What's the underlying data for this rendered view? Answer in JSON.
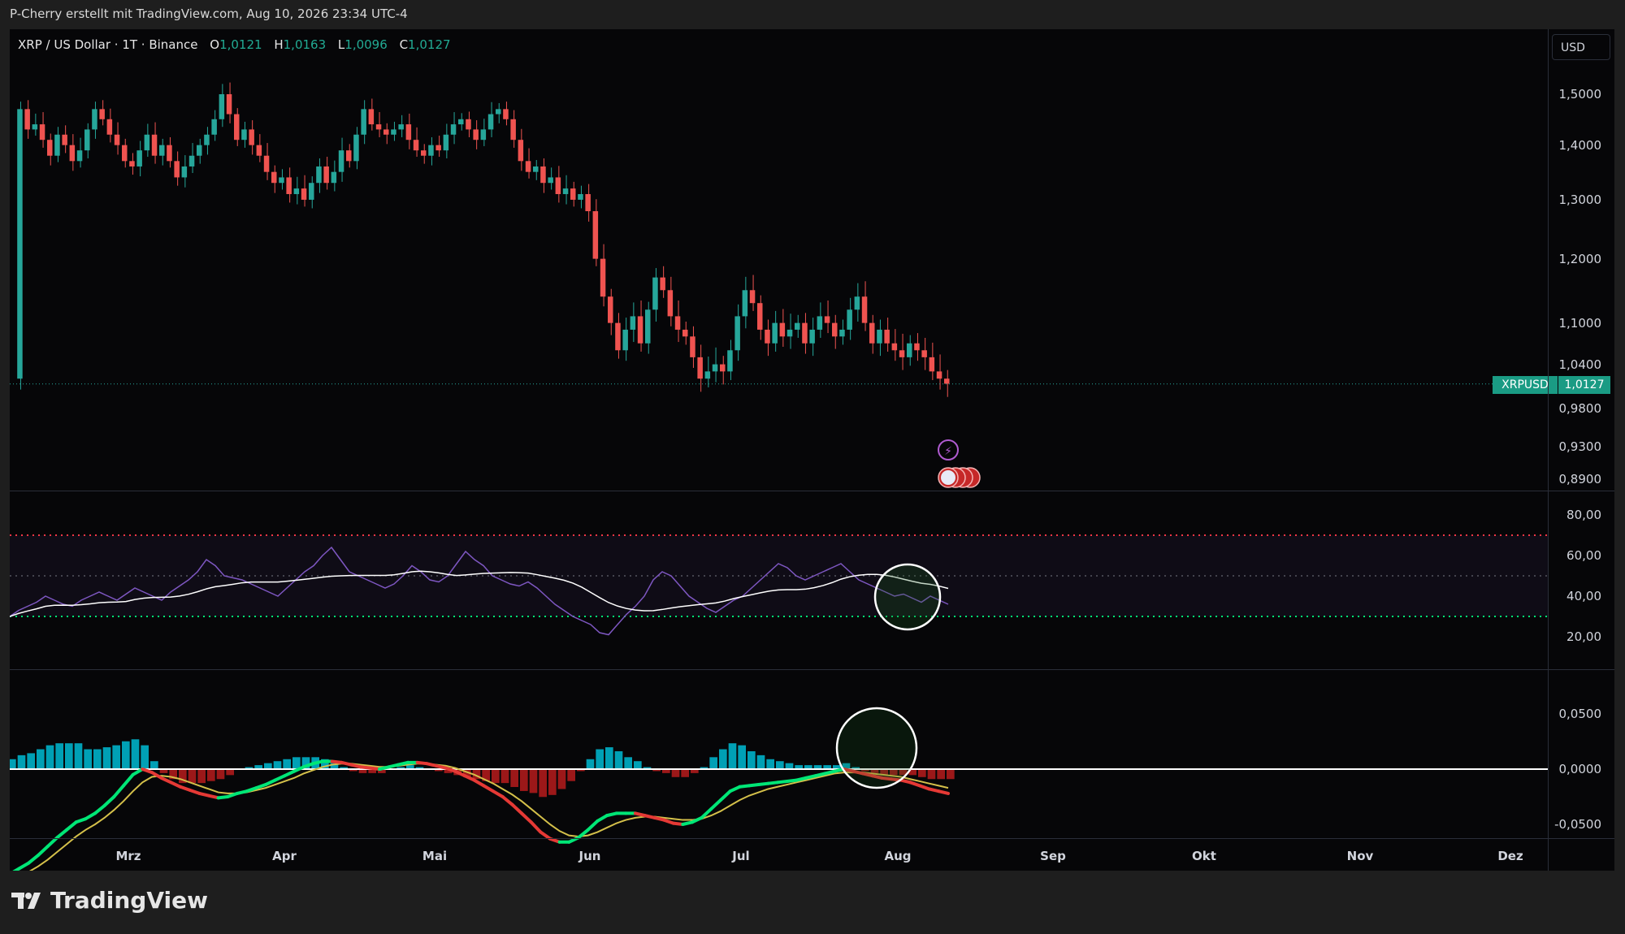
{
  "header": {
    "text": "P-Cherry erstellt mit TradingView.com, Aug 10, 2026 23:34 UTC-4"
  },
  "legend": {
    "symbol": "XRP / US Dollar · 1T · Binance",
    "o_label": "O",
    "o_value": "1,0121",
    "h_label": "H",
    "h_value": "1,0163",
    "l_label": "L",
    "l_value": "1,0096",
    "c_label": "C",
    "c_value": "1,0127"
  },
  "currency_button": "USD",
  "price_tag": {
    "symbol": "XRPUSD",
    "value": "1,0127"
  },
  "brand": {
    "name": "TradingView",
    "icon": "tradingview-logo-icon"
  },
  "colors": {
    "up": "#26a69a",
    "down": "#ef5350",
    "rsi": "#7e57c2",
    "rsi_ma": "#ffffff",
    "macd_fast": "#00e676",
    "macd_signal": "#d4c04a",
    "hist_pos": "#00bcd4",
    "hist_neg": "#b71c1c"
  },
  "chart_data": {
    "type": "candlestick",
    "panes": {
      "price": {
        "y_ticks": [
          "1,5000",
          "1,4000",
          "1,3000",
          "1,2000",
          "1,1000",
          "1,0400",
          "0,9800",
          "0,9300",
          "0,8900"
        ],
        "last_price": 1.0127,
        "closes": [
          1.02,
          1.47,
          1.43,
          1.44,
          1.41,
          1.38,
          1.42,
          1.4,
          1.37,
          1.39,
          1.43,
          1.47,
          1.45,
          1.42,
          1.4,
          1.37,
          1.36,
          1.39,
          1.42,
          1.38,
          1.4,
          1.37,
          1.34,
          1.36,
          1.38,
          1.4,
          1.42,
          1.45,
          1.5,
          1.46,
          1.41,
          1.43,
          1.4,
          1.38,
          1.35,
          1.33,
          1.34,
          1.31,
          1.32,
          1.3,
          1.33,
          1.36,
          1.33,
          1.35,
          1.39,
          1.37,
          1.42,
          1.47,
          1.44,
          1.43,
          1.42,
          1.43,
          1.44,
          1.41,
          1.39,
          1.38,
          1.4,
          1.39,
          1.42,
          1.44,
          1.45,
          1.43,
          1.41,
          1.43,
          1.46,
          1.47,
          1.45,
          1.41,
          1.37,
          1.35,
          1.36,
          1.33,
          1.34,
          1.31,
          1.32,
          1.3,
          1.31,
          1.28,
          1.2,
          1.14,
          1.1,
          1.06,
          1.09,
          1.11,
          1.07,
          1.12,
          1.17,
          1.15,
          1.11,
          1.09,
          1.08,
          1.05,
          1.02,
          1.03,
          1.04,
          1.03,
          1.06,
          1.11,
          1.15,
          1.13,
          1.09,
          1.07,
          1.1,
          1.08,
          1.09,
          1.1,
          1.07,
          1.09,
          1.11,
          1.1,
          1.08,
          1.09,
          1.12,
          1.14,
          1.1,
          1.07,
          1.09,
          1.07,
          1.06,
          1.05,
          1.07,
          1.06,
          1.05,
          1.03,
          1.02,
          1.013
        ]
      },
      "rsi": {
        "y_ticks": [
          "80,00",
          "60,00",
          "40,00",
          "20,00"
        ],
        "overbought": 70,
        "midline": 50,
        "oversold": 30,
        "values": [
          30,
          33,
          35,
          37,
          40,
          38,
          36,
          35,
          38,
          40,
          42,
          40,
          38,
          41,
          44,
          42,
          40,
          38,
          42,
          45,
          48,
          52,
          58,
          55,
          50,
          49,
          48,
          46,
          44,
          42,
          40,
          44,
          48,
          52,
          55,
          60,
          64,
          58,
          52,
          50,
          48,
          46,
          44,
          46,
          50,
          55,
          52,
          48,
          47,
          50,
          56,
          62,
          58,
          55,
          50,
          48,
          46,
          45,
          47,
          44,
          40,
          36,
          33,
          30,
          28,
          26,
          22,
          21,
          26,
          31,
          35,
          40,
          48,
          52,
          50,
          45,
          40,
          37,
          34,
          32,
          35,
          38,
          40,
          44,
          48,
          52,
          56,
          54,
          50,
          48,
          50,
          52,
          54,
          56,
          52,
          48,
          46,
          44,
          42,
          40,
          41,
          39,
          37,
          40,
          38,
          36
        ]
      },
      "macd": {
        "y_ticks": [
          "0,0500",
          "0,0000",
          "-0,0500"
        ],
        "macd": [
          -0.095,
          -0.09,
          -0.085,
          -0.078,
          -0.07,
          -0.062,
          -0.055,
          -0.048,
          -0.045,
          -0.04,
          -0.033,
          -0.025,
          -0.015,
          -0.005,
          0.0,
          -0.003,
          -0.008,
          -0.012,
          -0.016,
          -0.019,
          -0.022,
          -0.024,
          -0.026,
          -0.025,
          -0.022,
          -0.02,
          -0.017,
          -0.014,
          -0.01,
          -0.006,
          -0.002,
          0.002,
          0.005,
          0.007,
          0.007,
          0.006,
          0.004,
          0.002,
          0.001,
          0.0,
          0.002,
          0.004,
          0.006,
          0.006,
          0.005,
          0.003,
          0.001,
          -0.002,
          -0.006,
          -0.01,
          -0.015,
          -0.02,
          -0.025,
          -0.032,
          -0.04,
          -0.048,
          -0.057,
          -0.063,
          -0.066,
          -0.066,
          -0.062,
          -0.055,
          -0.047,
          -0.042,
          -0.04,
          -0.04,
          -0.04,
          -0.042,
          -0.044,
          -0.046,
          -0.049,
          -0.05,
          -0.048,
          -0.044,
          -0.036,
          -0.028,
          -0.02,
          -0.016,
          -0.015,
          -0.014,
          -0.013,
          -0.012,
          -0.011,
          -0.01,
          -0.008,
          -0.006,
          -0.004,
          -0.002,
          0.0,
          -0.002,
          -0.004,
          -0.006,
          -0.008,
          -0.009,
          -0.01,
          -0.012,
          -0.015,
          -0.018,
          -0.02,
          -0.022
        ],
        "signal": [
          -0.1,
          -0.097,
          -0.093,
          -0.088,
          -0.082,
          -0.075,
          -0.068,
          -0.061,
          -0.055,
          -0.05,
          -0.044,
          -0.037,
          -0.029,
          -0.02,
          -0.012,
          -0.007,
          -0.006,
          -0.007,
          -0.009,
          -0.012,
          -0.015,
          -0.018,
          -0.021,
          -0.022,
          -0.022,
          -0.021,
          -0.019,
          -0.017,
          -0.014,
          -0.011,
          -0.008,
          -0.004,
          -0.001,
          0.002,
          0.004,
          0.005,
          0.005,
          0.004,
          0.003,
          0.002,
          0.002,
          0.003,
          0.004,
          0.005,
          0.005,
          0.004,
          0.003,
          0.001,
          -0.002,
          -0.005,
          -0.009,
          -0.013,
          -0.018,
          -0.023,
          -0.029,
          -0.036,
          -0.043,
          -0.05,
          -0.056,
          -0.06,
          -0.061,
          -0.06,
          -0.057,
          -0.053,
          -0.049,
          -0.046,
          -0.044,
          -0.043,
          -0.043,
          -0.044,
          -0.045,
          -0.046,
          -0.046,
          -0.045,
          -0.042,
          -0.038,
          -0.033,
          -0.028,
          -0.024,
          -0.021,
          -0.018,
          -0.016,
          -0.014,
          -0.012,
          -0.01,
          -0.008,
          -0.006,
          -0.004,
          -0.003,
          -0.003,
          -0.003,
          -0.004,
          -0.005,
          -0.006,
          -0.007,
          -0.009,
          -0.011,
          -0.013,
          -0.015,
          -0.017
        ]
      }
    },
    "x_ticks": [
      "Mrz",
      "Apr",
      "Mai",
      "Jun",
      "Jul",
      "Aug",
      "Sep",
      "Okt",
      "Nov",
      "Dez"
    ],
    "annotations": [
      "circle-rsi-late-july",
      "circle-macd-crossover-late-july"
    ]
  }
}
